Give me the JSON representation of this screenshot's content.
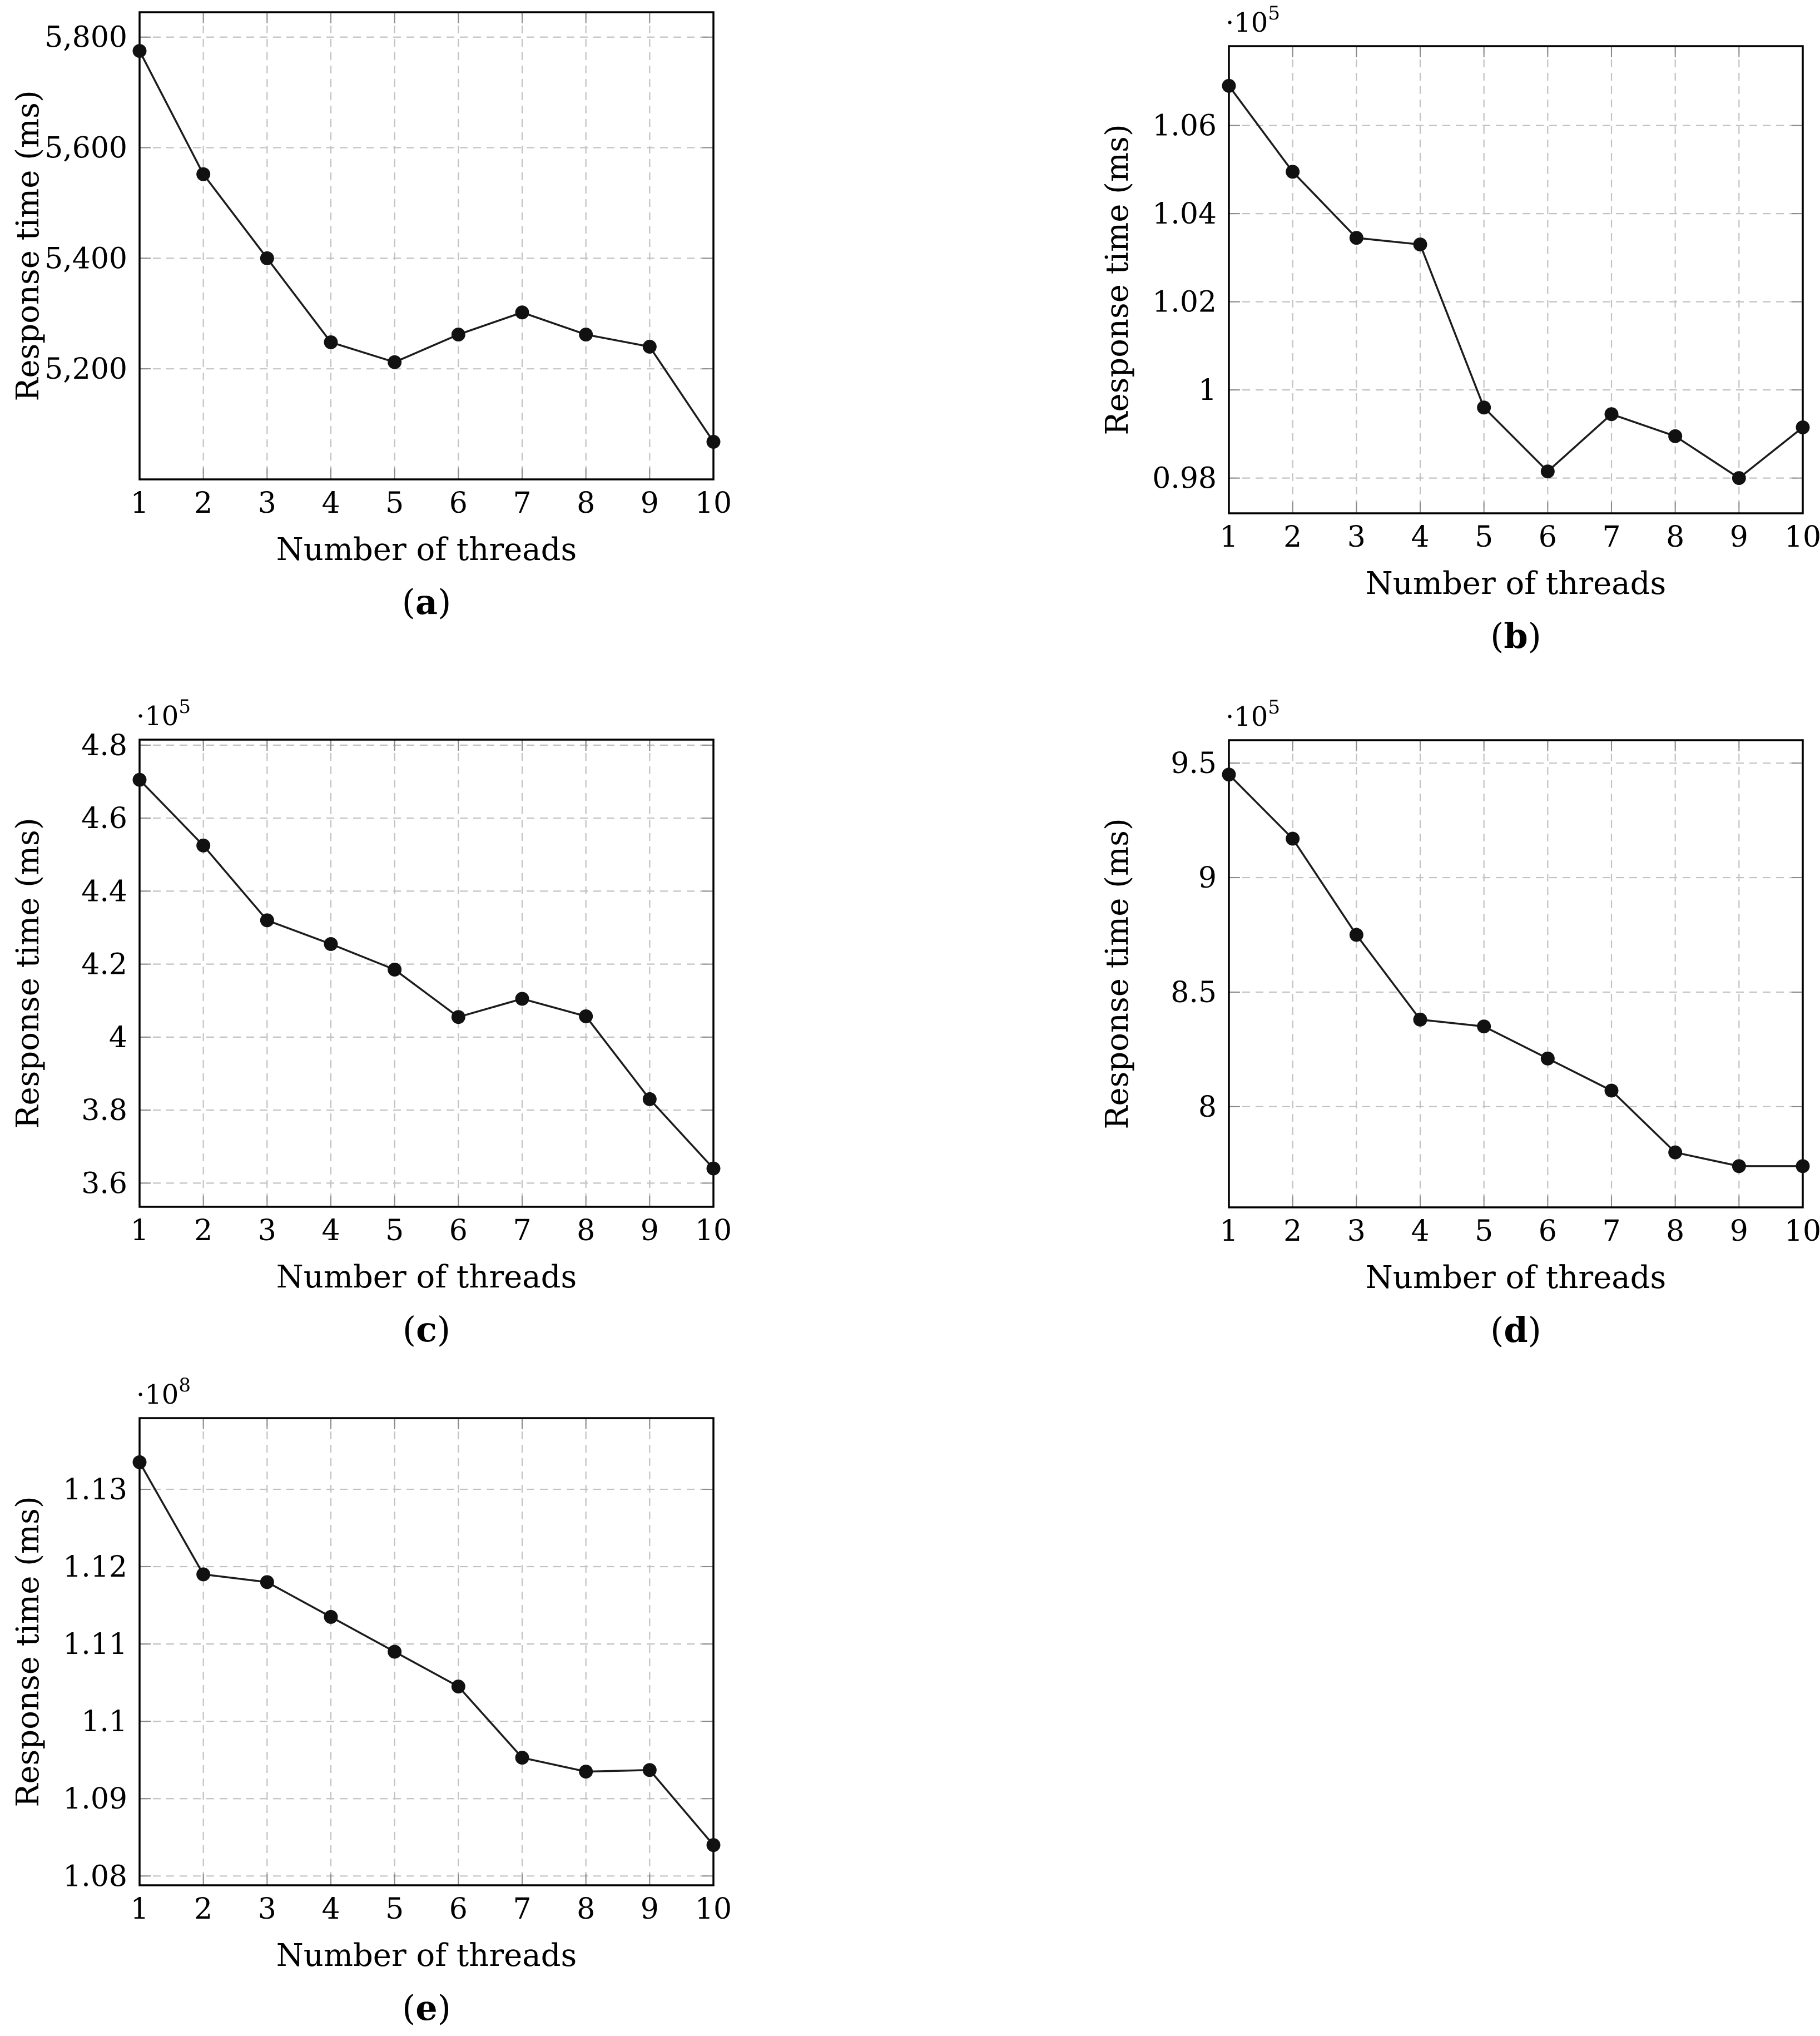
{
  "figure": {
    "background": "#ffffff",
    "text_color": "#000000",
    "grid_color": "#c2c2c2",
    "tick_color": "#8a8a8a",
    "frame_color": "#000000",
    "line_color": "#1c1c1c",
    "marker_color": "#111111",
    "xlabel": "Number of threads",
    "ylabel": "Response time (ms)"
  },
  "chart_data": [
    {
      "id": "a",
      "type": "line",
      "caption": "(a)",
      "caption_letter": "a",
      "xlabel": "Number of threads",
      "ylabel": "Response time (ms)",
      "y_unit_exponent": null,
      "x": [
        1,
        2,
        3,
        4,
        5,
        6,
        7,
        8,
        9,
        10
      ],
      "values": [
        5775,
        5552,
        5400,
        5248,
        5212,
        5262,
        5302,
        5262,
        5240,
        5068
      ],
      "ylim": [
        5000,
        5845
      ],
      "xlim": [
        1,
        10
      ],
      "yticks": [
        {
          "value": 5200,
          "label": "5,200"
        },
        {
          "value": 5400,
          "label": "5,400"
        },
        {
          "value": 5600,
          "label": "5,600"
        },
        {
          "value": 5800,
          "label": "5,800"
        }
      ],
      "xticks": [
        "1",
        "2",
        "3",
        "4",
        "5",
        "6",
        "7",
        "8",
        "9",
        "10"
      ],
      "grid": true,
      "legend_position": null
    },
    {
      "id": "b",
      "type": "line",
      "caption": "(b)",
      "caption_letter": "b",
      "xlabel": "Number of threads",
      "ylabel": "Response time (ms)",
      "y_unit_exponent": 5,
      "x": [
        1,
        2,
        3,
        4,
        5,
        6,
        7,
        8,
        9,
        10
      ],
      "values": [
        1.069,
        1.0495,
        1.0345,
        1.033,
        0.996,
        0.9815,
        0.9945,
        0.9895,
        0.98,
        0.9915
      ],
      "ylim": [
        0.972,
        1.078
      ],
      "xlim": [
        1,
        10
      ],
      "yticks": [
        {
          "value": 0.98,
          "label": "0.98"
        },
        {
          "value": 1.0,
          "label": "1"
        },
        {
          "value": 1.02,
          "label": "1.02"
        },
        {
          "value": 1.04,
          "label": "1.04"
        },
        {
          "value": 1.06,
          "label": "1.06"
        }
      ],
      "xticks": [
        "1",
        "2",
        "3",
        "4",
        "5",
        "6",
        "7",
        "8",
        "9",
        "10"
      ],
      "grid": true,
      "legend_position": null
    },
    {
      "id": "c",
      "type": "line",
      "caption": "(c)",
      "caption_letter": "c",
      "xlabel": "Number of threads",
      "ylabel": "Response time (ms)",
      "y_unit_exponent": 5,
      "x": [
        1,
        2,
        3,
        4,
        5,
        6,
        7,
        8,
        9,
        10
      ],
      "values": [
        4.705,
        4.525,
        4.32,
        4.255,
        4.185,
        4.055,
        4.105,
        4.057,
        3.83,
        3.64
      ],
      "ylim": [
        3.535,
        4.815
      ],
      "xlim": [
        1,
        10
      ],
      "yticks": [
        {
          "value": 3.6,
          "label": "3.6"
        },
        {
          "value": 3.8,
          "label": "3.8"
        },
        {
          "value": 4.0,
          "label": "4"
        },
        {
          "value": 4.2,
          "label": "4.2"
        },
        {
          "value": 4.4,
          "label": "4.4"
        },
        {
          "value": 4.6,
          "label": "4.6"
        },
        {
          "value": 4.8,
          "label": "4.8"
        }
      ],
      "xticks": [
        "1",
        "2",
        "3",
        "4",
        "5",
        "6",
        "7",
        "8",
        "9",
        "10"
      ],
      "grid": true,
      "legend_position": null
    },
    {
      "id": "d",
      "type": "line",
      "caption": "(d)",
      "caption_letter": "d",
      "xlabel": "Number of threads",
      "ylabel": "Response time (ms)",
      "y_unit_exponent": 5,
      "x": [
        1,
        2,
        3,
        4,
        5,
        6,
        7,
        8,
        9,
        10
      ],
      "values": [
        9.45,
        9.17,
        8.75,
        8.38,
        8.35,
        8.21,
        8.07,
        7.8,
        7.74,
        7.74
      ],
      "ylim": [
        7.56,
        9.6
      ],
      "xlim": [
        1,
        10
      ],
      "yticks": [
        {
          "value": 8.0,
          "label": "8"
        },
        {
          "value": 8.5,
          "label": "8.5"
        },
        {
          "value": 9.0,
          "label": "9"
        },
        {
          "value": 9.5,
          "label": "9.5"
        }
      ],
      "xticks": [
        "1",
        "2",
        "3",
        "4",
        "5",
        "6",
        "7",
        "8",
        "9",
        "10"
      ],
      "grid": true,
      "legend_position": null
    },
    {
      "id": "e",
      "type": "line",
      "caption": "(e)",
      "caption_letter": "e",
      "xlabel": "Number of threads",
      "ylabel": "Response time (ms)",
      "y_unit_exponent": 8,
      "x": [
        1,
        2,
        3,
        4,
        5,
        6,
        7,
        8,
        9,
        10
      ],
      "values": [
        1.1335,
        1.119,
        1.118,
        1.1135,
        1.109,
        1.1045,
        1.0953,
        1.0935,
        1.0937,
        1.084
      ],
      "ylim": [
        1.0788,
        1.1392
      ],
      "xlim": [
        1,
        10
      ],
      "yticks": [
        {
          "value": 1.08,
          "label": "1.08"
        },
        {
          "value": 1.09,
          "label": "1.09"
        },
        {
          "value": 1.1,
          "label": "1.1"
        },
        {
          "value": 1.11,
          "label": "1.11"
        },
        {
          "value": 1.12,
          "label": "1.12"
        },
        {
          "value": 1.13,
          "label": "1.13"
        }
      ],
      "xticks": [
        "1",
        "2",
        "3",
        "4",
        "5",
        "6",
        "7",
        "8",
        "9",
        "10"
      ],
      "grid": true,
      "legend_position": null
    }
  ]
}
